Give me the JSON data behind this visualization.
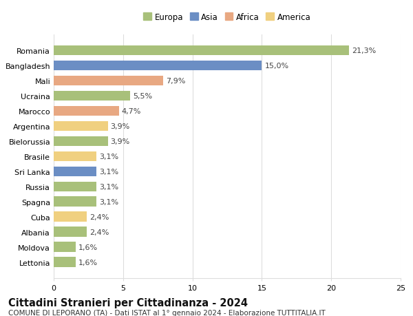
{
  "countries": [
    "Lettonia",
    "Moldova",
    "Albania",
    "Cuba",
    "Spagna",
    "Russia",
    "Sri Lanka",
    "Brasile",
    "Bielorussia",
    "Argentina",
    "Marocco",
    "Ucraina",
    "Mali",
    "Bangladesh",
    "Romania"
  ],
  "values": [
    1.6,
    1.6,
    2.4,
    2.4,
    3.1,
    3.1,
    3.1,
    3.1,
    3.9,
    3.9,
    4.7,
    5.5,
    7.9,
    15.0,
    21.3
  ],
  "labels": [
    "1,6%",
    "1,6%",
    "2,4%",
    "2,4%",
    "3,1%",
    "3,1%",
    "3,1%",
    "3,1%",
    "3,9%",
    "3,9%",
    "4,7%",
    "5,5%",
    "7,9%",
    "15,0%",
    "21,3%"
  ],
  "continents": [
    "Europa",
    "Europa",
    "Europa",
    "America",
    "Europa",
    "Europa",
    "Asia",
    "America",
    "Europa",
    "America",
    "Africa",
    "Europa",
    "Africa",
    "Asia",
    "Europa"
  ],
  "continent_colors": {
    "Europa": "#a8c07a",
    "Asia": "#6b8ec4",
    "Africa": "#e8a882",
    "America": "#f0d080"
  },
  "legend_order": [
    "Europa",
    "Asia",
    "Africa",
    "America"
  ],
  "xlim": [
    0,
    25
  ],
  "xticks": [
    0,
    5,
    10,
    15,
    20,
    25
  ],
  "title": "Cittadini Stranieri per Cittadinanza - 2024",
  "subtitle": "COMUNE DI LEPORANO (TA) - Dati ISTAT al 1° gennaio 2024 - Elaborazione TUTTITALIA.IT",
  "bg_color": "#ffffff",
  "grid_color": "#dddddd",
  "bar_height": 0.65,
  "label_fontsize": 8,
  "tick_fontsize": 8,
  "title_fontsize": 10.5,
  "subtitle_fontsize": 7.5
}
